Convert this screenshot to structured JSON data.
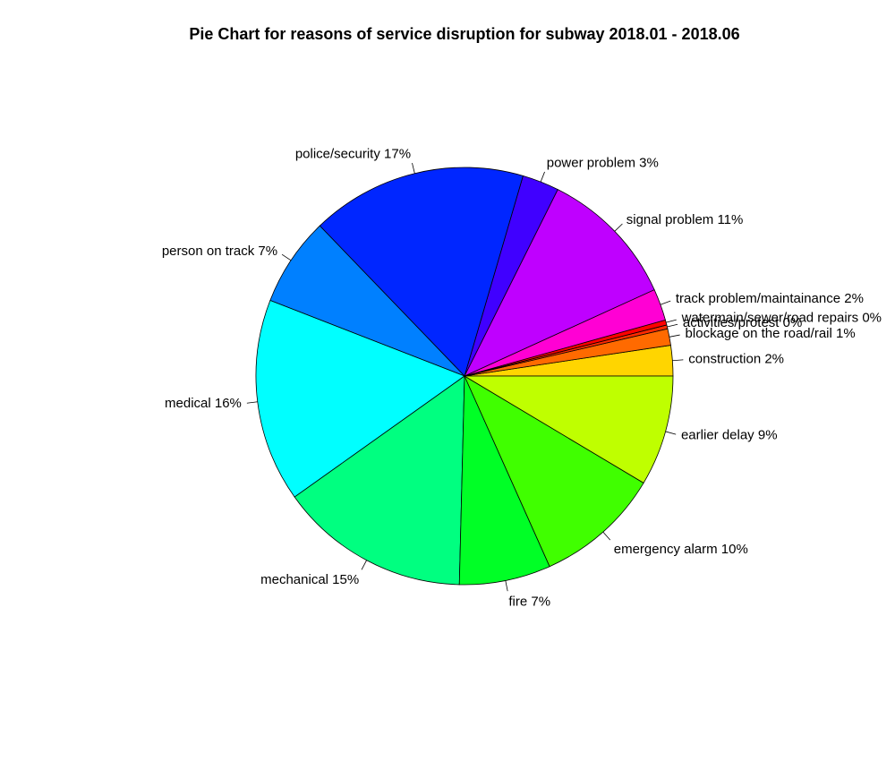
{
  "chart_data": {
    "type": "pie",
    "title": "Pie Chart for reasons of service disruption for subway 2018.01 - 2018.06",
    "start_angle_deg": 0,
    "direction": "counterclockwise",
    "slices": [
      {
        "label": "construction 2%",
        "value": 2.4,
        "color": "#FFD500"
      },
      {
        "label": "blockage on the road/rail 1%",
        "value": 1.3,
        "color": "#FF6A00"
      },
      {
        "label": "activities/protest 0%",
        "value": 0.3,
        "color": "#FF2A00"
      },
      {
        "label": "watermain/sewer/road repairs 0%",
        "value": 0.4,
        "color": "#FF0000"
      },
      {
        "label": "track problem/maintainance 2%",
        "value": 2.5,
        "color": "#FF00D4"
      },
      {
        "label": "signal problem 11%",
        "value": 11.0,
        "color": "#BF00FF"
      },
      {
        "label": "power problem 3%",
        "value": 2.9,
        "color": "#4000FF"
      },
      {
        "label": "police/security 17%",
        "value": 17.0,
        "color": "#0026FF"
      },
      {
        "label": "person on track 7%",
        "value": 7.0,
        "color": "#0080FF"
      },
      {
        "label": "medical 16%",
        "value": 16.0,
        "color": "#00FFFF"
      },
      {
        "label": "mechanical 15%",
        "value": 15.0,
        "color": "#00FF80"
      },
      {
        "label": "fire 7%",
        "value": 7.2,
        "color": "#00FF26"
      },
      {
        "label": "emergency alarm 10%",
        "value": 9.9,
        "color": "#40FF00"
      },
      {
        "label": "earlier delay 9%",
        "value": 8.7,
        "color": "#BFFF00"
      }
    ]
  }
}
